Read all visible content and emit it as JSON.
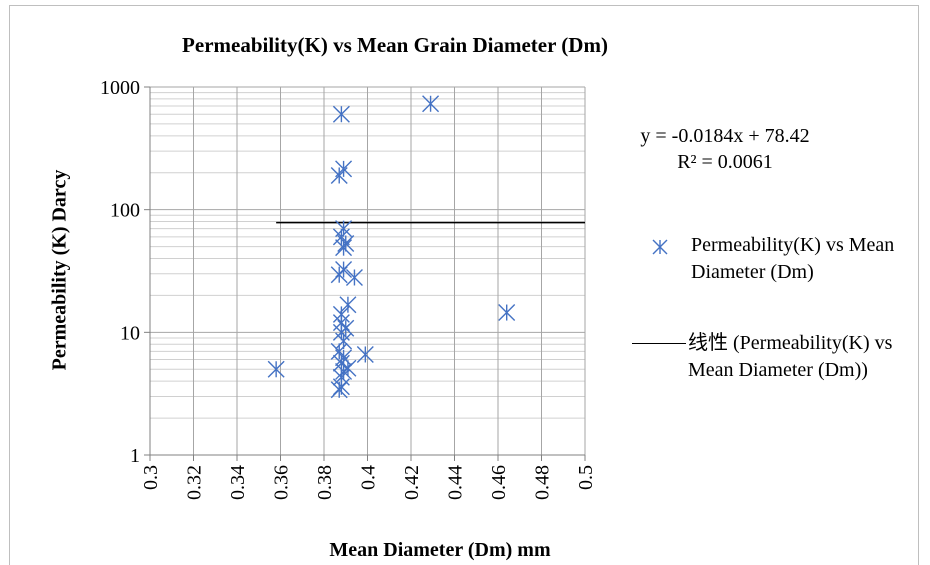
{
  "chart_data": {
    "type": "scatter",
    "title": "Permeability(K) vs Mean Grain Diameter (Dm)",
    "xlabel": "Mean Diameter (Dm) mm",
    "ylabel": "Permeability (K) Darcy",
    "xlim": [
      0.3,
      0.5
    ],
    "ylim": [
      1,
      1000
    ],
    "yscale": "log",
    "grid": true,
    "legend_position": "right",
    "x_tick_labels": [
      "0.3",
      "0.32",
      "0.34",
      "0.36",
      "0.38",
      "0.4",
      "0.42",
      "0.44",
      "0.46",
      "0.48",
      "0.5"
    ],
    "y_tick_labels": [
      "1",
      "10",
      "100",
      "1000"
    ],
    "series": [
      {
        "name": "Permeability(K) vs Mean Diameter (Dm)",
        "marker": "asterisk",
        "color": "#4472C4",
        "points": [
          [
            0.358,
            5.0
          ],
          [
            0.387,
            3.4
          ],
          [
            0.388,
            3.6
          ],
          [
            0.388,
            4.3
          ],
          [
            0.388,
            5.6
          ],
          [
            0.389,
            6.2
          ],
          [
            0.387,
            7.0
          ],
          [
            0.389,
            8.5
          ],
          [
            0.388,
            10.0
          ],
          [
            0.39,
            10.8
          ],
          [
            0.389,
            4.8
          ],
          [
            0.391,
            5.1
          ],
          [
            0.388,
            12.0
          ],
          [
            0.388,
            14.0
          ],
          [
            0.391,
            16.8
          ],
          [
            0.399,
            6.6
          ],
          [
            0.387,
            29.5
          ],
          [
            0.389,
            32.5
          ],
          [
            0.394,
            28.0
          ],
          [
            0.389,
            49.0
          ],
          [
            0.39,
            53.0
          ],
          [
            0.388,
            60.0
          ],
          [
            0.389,
            70.0
          ],
          [
            0.387,
            190.0
          ],
          [
            0.389,
            215.0
          ],
          [
            0.388,
            600.0
          ],
          [
            0.429,
            730.0
          ],
          [
            0.464,
            14.5
          ]
        ]
      }
    ],
    "trendline": {
      "name": "线性 (Permeability(K) vs Mean Diameter (Dm))",
      "type": "linear",
      "color": "#000000",
      "x_range": [
        0.358,
        0.5
      ],
      "equation": "y = -0.0184x + 78.42",
      "r_squared": "R² = 0.0061"
    }
  }
}
